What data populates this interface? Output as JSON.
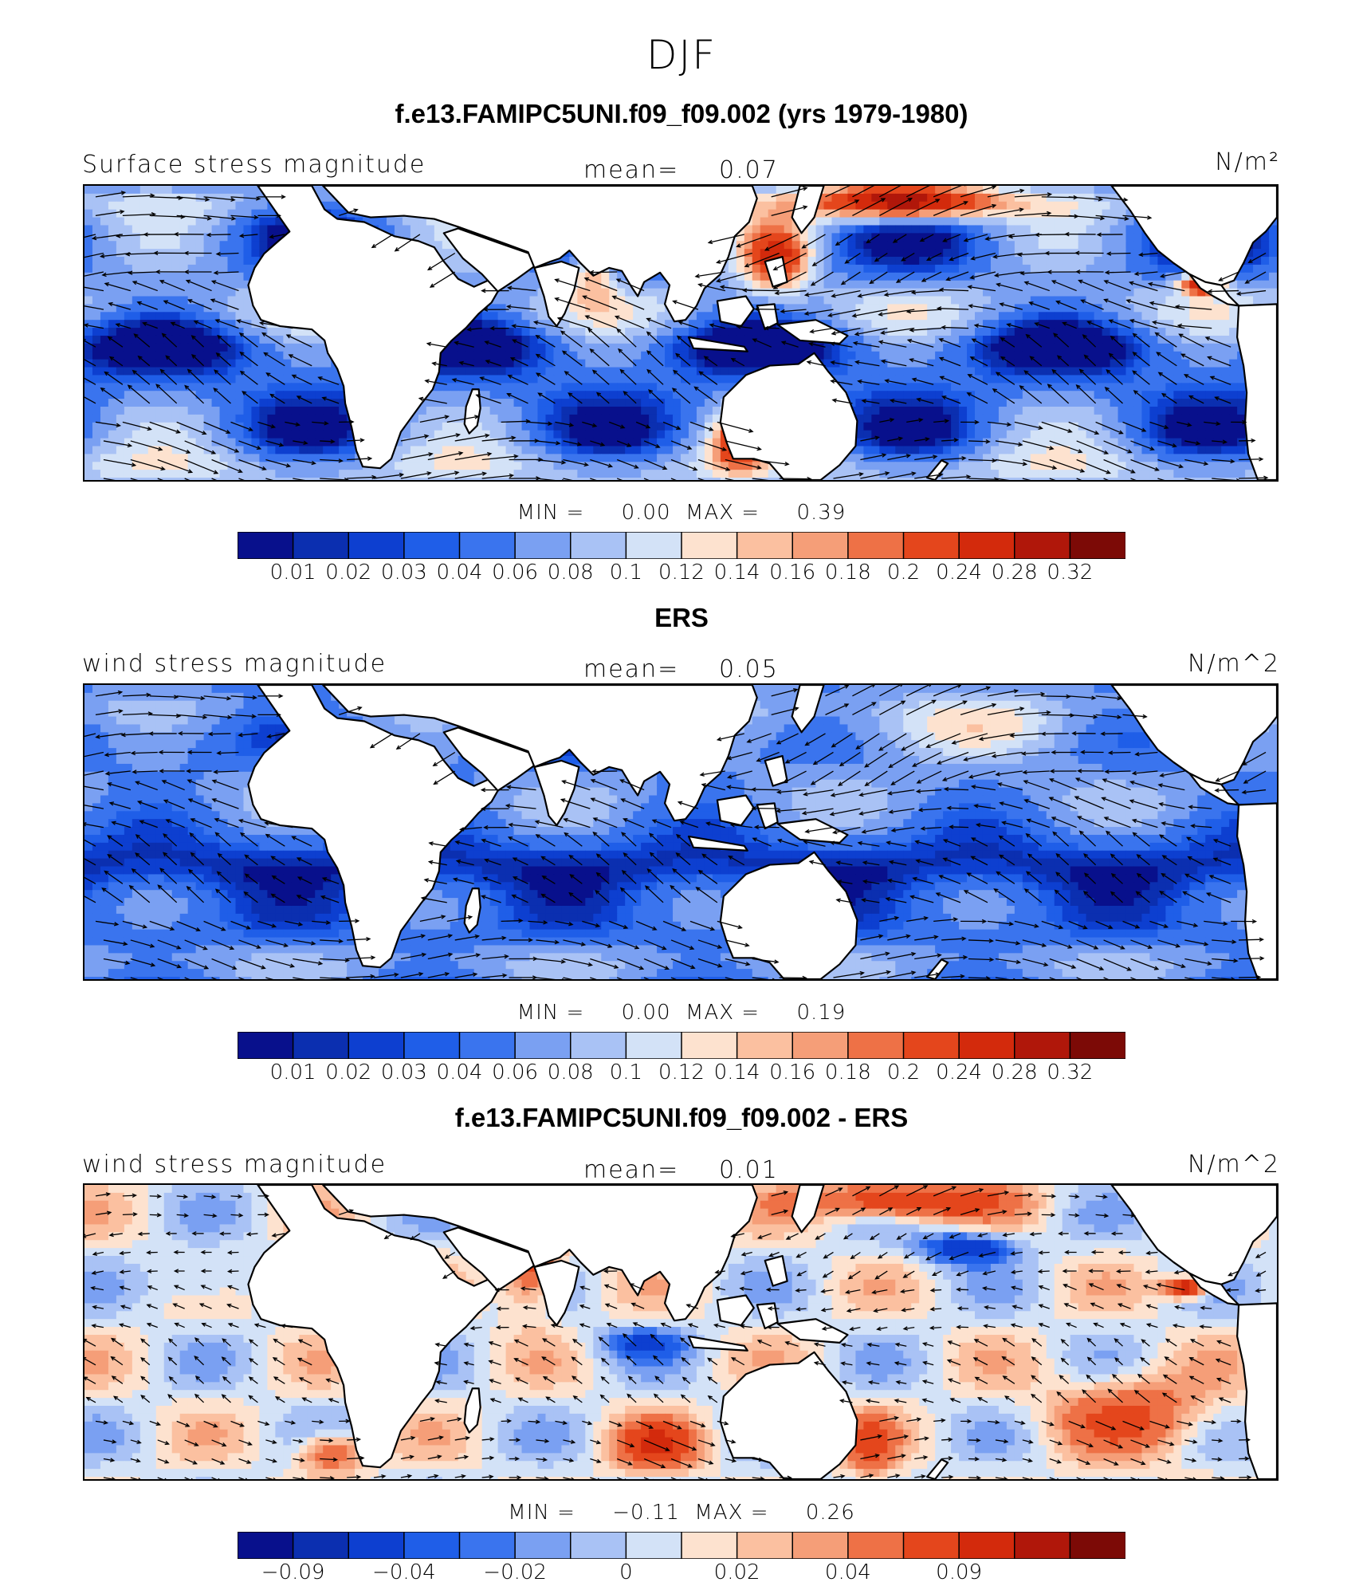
{
  "figure": {
    "title": "DJF"
  },
  "panels": [
    {
      "title": "f.e13.FAMIPC5UNI.f09_f09.002 (yrs 1979-1980)",
      "left_label": "Surface stress magnitude",
      "mean_label": "mean=",
      "mean_value": "0.07",
      "units": "N/m²",
      "min_label": "MIN =",
      "min_value": "0.00",
      "max_label": "MAX =",
      "max_value": "0.39",
      "colorbar_ticks": [
        "0.01",
        "0.02",
        "0.03",
        "0.04",
        "0.06",
        "0.08",
        "0.1",
        "0.12",
        "0.14",
        "0.16",
        "0.18",
        "0.2",
        "0.24",
        "0.28",
        "0.32"
      ]
    },
    {
      "title": "ERS",
      "left_label": "wind stress magnitude",
      "mean_label": "mean=",
      "mean_value": "0.05",
      "units": "N/m^2",
      "min_label": "MIN =",
      "min_value": "0.00",
      "max_label": "MAX =",
      "max_value": "0.19",
      "colorbar_ticks": [
        "0.01",
        "0.02",
        "0.03",
        "0.04",
        "0.06",
        "0.08",
        "0.1",
        "0.12",
        "0.14",
        "0.16",
        "0.18",
        "0.2",
        "0.24",
        "0.28",
        "0.32"
      ]
    },
    {
      "title": "f.e13.FAMIPC5UNI.f09_f09.002 - ERS",
      "left_label": "wind stress magnitude",
      "mean_label": "mean=",
      "mean_value": "0.01",
      "units": "N/m^2",
      "min_label": "MIN =",
      "min_value": "−0.11",
      "max_label": "MAX =",
      "max_value": "0.26",
      "colorbar_ticks": [
        "−0.09",
        "−0.04",
        "−0.02",
        "0",
        "0.02",
        "0.04",
        "0.09"
      ]
    }
  ],
  "colors": {
    "palette": [
      "#08108c",
      "#0b2fb0",
      "#0d3fd0",
      "#1f5ee8",
      "#3a74ee",
      "#7aa0f2",
      "#a9c2f5",
      "#d3e2f7",
      "#fde2cf",
      "#fbc0a0",
      "#f59e78",
      "#ee7146",
      "#e4461c",
      "#d32a0c",
      "#b0170a",
      "#7c0a06"
    ],
    "land": "#ffffff",
    "coast": "#000000",
    "arrow": "#000000"
  }
}
